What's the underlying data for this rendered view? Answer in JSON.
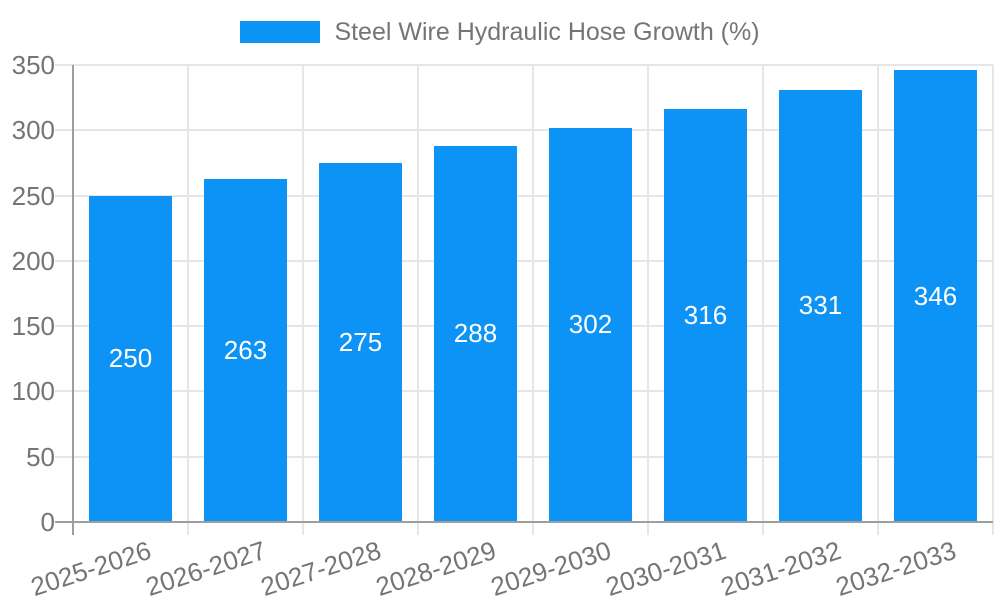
{
  "legend": {
    "label": "Steel Wire Hydraulic Hose Growth (%)"
  },
  "colors": {
    "bar": "#0d93f5",
    "axis_text": "#757575",
    "value_text": "#ffffff",
    "gridline": "#e6e6e6",
    "axis_line": "#9e9e9e",
    "background": "#ffffff"
  },
  "chart_data": {
    "type": "bar",
    "title": "Steel Wire Hydraulic Hose Growth (%)",
    "categories": [
      "2025-2026",
      "2026-2027",
      "2027-2028",
      "2028-2029",
      "2029-2030",
      "2030-2031",
      "2031-2032",
      "2032-2033"
    ],
    "values": [
      250,
      263,
      275,
      288,
      302,
      316,
      331,
      346
    ],
    "xlabel": "",
    "ylabel": "",
    "ylim": [
      0,
      350
    ],
    "yticks": [
      0,
      50,
      100,
      150,
      200,
      250,
      300,
      350
    ],
    "grid": true,
    "legend_position": "top",
    "bar_color": "#0d93f5",
    "value_labels": "inside-center",
    "x_label_rotation_deg": -18
  }
}
